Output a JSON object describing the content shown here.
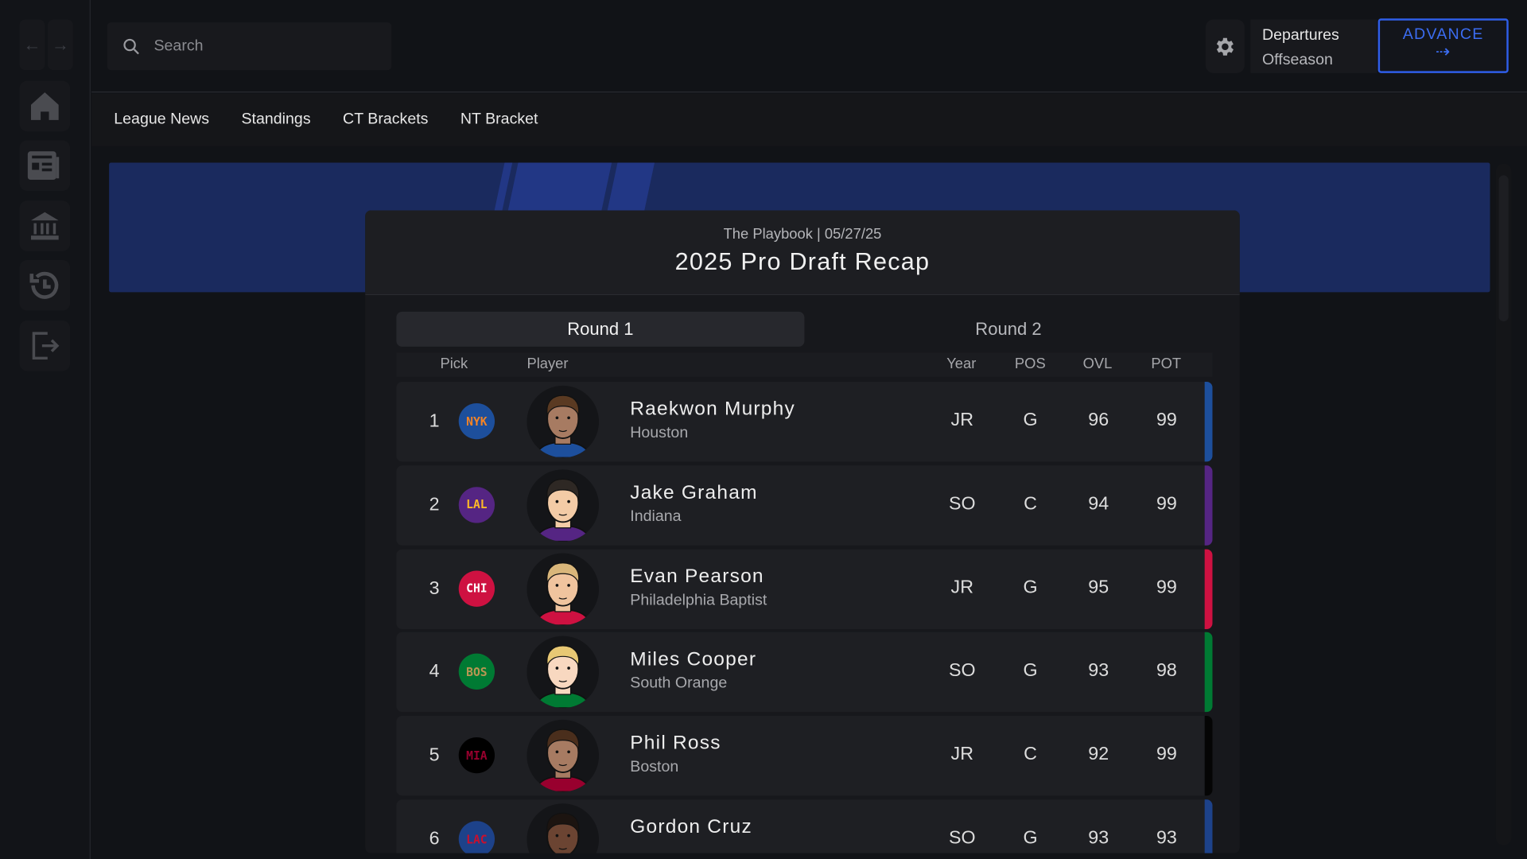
{
  "nav": {
    "back_icon": "arrow-left-icon",
    "forward_icon": "arrow-right-icon",
    "items": [
      "home-icon",
      "newspaper-icon",
      "bank-icon",
      "history-icon",
      "logout-icon"
    ]
  },
  "search": {
    "placeholder": "Search"
  },
  "header": {
    "phase_title": "Departures",
    "phase_sub": "Offseason",
    "advance_label": "ADVANCE",
    "advance_arrow": "⇢"
  },
  "tabs": [
    "League News",
    "Standings",
    "CT Brackets",
    "NT Bracket"
  ],
  "article": {
    "source": "The Playbook | 05/27/25",
    "title": "2025 Pro Draft Recap"
  },
  "rounds": [
    "Round 1",
    "Round 2"
  ],
  "columns": {
    "pick": "Pick",
    "player": "Player",
    "year": "Year",
    "pos": "POS",
    "ovl": "OVL",
    "pot": "POT"
  },
  "picks": [
    {
      "pick": "1",
      "team": "NYK",
      "team_bg": "#1d4f9c",
      "team_fg": "#f58426",
      "name": "Raekwon Murphy",
      "school": "Houston",
      "year": "JR",
      "pos": "G",
      "ovl": "96",
      "pot": "99",
      "skin": "#a77b62",
      "hair": "#5a3a22",
      "jersey": "#1d4f9c"
    },
    {
      "pick": "2",
      "team": "LAL",
      "team_bg": "#552583",
      "team_fg": "#fdb927",
      "name": "Jake Graham",
      "school": "Indiana",
      "year": "SO",
      "pos": "C",
      "ovl": "94",
      "pot": "99",
      "skin": "#f3cba6",
      "hair": "#2e2824",
      "jersey": "#552583"
    },
    {
      "pick": "3",
      "team": "CHI",
      "team_bg": "#ce1141",
      "team_fg": "#ffffff",
      "name": "Evan Pearson",
      "school": "Philadelphia Baptist",
      "year": "JR",
      "pos": "G",
      "ovl": "95",
      "pot": "99",
      "skin": "#f0c49e",
      "hair": "#d9b67a",
      "jersey": "#ce1141"
    },
    {
      "pick": "4",
      "team": "BOS",
      "team_bg": "#007a33",
      "team_fg": "#ba9653",
      "name": "Miles Cooper",
      "school": "South Orange",
      "year": "SO",
      "pos": "G",
      "ovl": "93",
      "pot": "98",
      "skin": "#f8d8c0",
      "hair": "#e8c874",
      "jersey": "#007a33"
    },
    {
      "pick": "5",
      "team": "MIA",
      "team_bg": "#000000",
      "team_fg": "#98002e",
      "name": "Phil Ross",
      "school": "Boston",
      "year": "JR",
      "pos": "C",
      "ovl": "92",
      "pot": "99",
      "skin": "#a77b62",
      "hair": "#4a2e1c",
      "jersey": "#98002e"
    },
    {
      "pick": "6",
      "team": "LAC",
      "team_bg": "#1d428a",
      "team_fg": "#c8102e",
      "name": "Gordon Cruz",
      "school": "",
      "year": "SO",
      "pos": "G",
      "ovl": "93",
      "pot": "93",
      "skin": "#6b4432",
      "hair": "#1c1410",
      "jersey": "#1d428a"
    }
  ]
}
